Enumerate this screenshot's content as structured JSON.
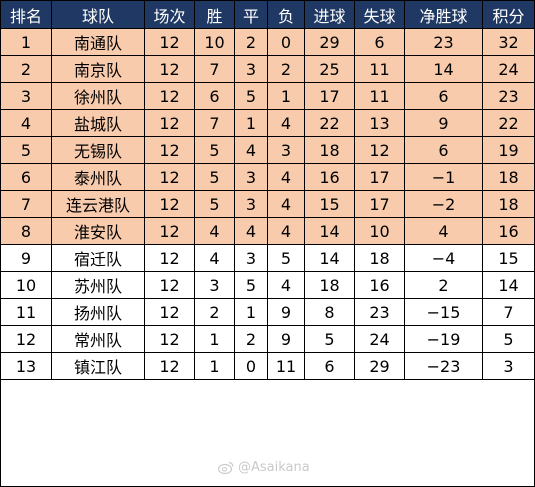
{
  "table": {
    "headers": [
      "排名",
      "球队",
      "场次",
      "胜",
      "平",
      "负",
      "进球",
      "失球",
      "净胜球",
      "积分"
    ],
    "rows": [
      [
        "1",
        "南通队",
        "12",
        "10",
        "2",
        "0",
        "29",
        "6",
        "23",
        "32"
      ],
      [
        "2",
        "南京队",
        "12",
        "7",
        "3",
        "2",
        "25",
        "11",
        "14",
        "24"
      ],
      [
        "3",
        "徐州队",
        "12",
        "6",
        "5",
        "1",
        "17",
        "11",
        "6",
        "23"
      ],
      [
        "4",
        "盐城队",
        "12",
        "7",
        "1",
        "4",
        "22",
        "13",
        "9",
        "22"
      ],
      [
        "5",
        "无锡队",
        "12",
        "5",
        "4",
        "3",
        "18",
        "12",
        "6",
        "19"
      ],
      [
        "6",
        "泰州队",
        "12",
        "5",
        "3",
        "4",
        "16",
        "17",
        "−1",
        "18"
      ],
      [
        "7",
        "连云港队",
        "12",
        "5",
        "3",
        "4",
        "15",
        "17",
        "−2",
        "18"
      ],
      [
        "8",
        "淮安队",
        "12",
        "4",
        "4",
        "4",
        "14",
        "10",
        "4",
        "16"
      ],
      [
        "9",
        "宿迁队",
        "12",
        "4",
        "3",
        "5",
        "14",
        "18",
        "−4",
        "15"
      ],
      [
        "10",
        "苏州队",
        "12",
        "3",
        "5",
        "4",
        "18",
        "16",
        "2",
        "14"
      ],
      [
        "11",
        "扬州队",
        "12",
        "2",
        "1",
        "9",
        "8",
        "23",
        "−15",
        "7"
      ],
      [
        "12",
        "常州队",
        "12",
        "1",
        "2",
        "9",
        "5",
        "24",
        "−19",
        "5"
      ],
      [
        "13",
        "镇江队",
        "12",
        "1",
        "0",
        "11",
        "6",
        "29",
        "−23",
        "3"
      ]
    ],
    "highlighted_rows": 8
  },
  "colors": {
    "header_bg": "#1f3864",
    "header_text": "#ffffff",
    "highlight_bg": "#f8cbad"
  },
  "watermark": {
    "icon": "weibo-icon",
    "text": "@Asaikana"
  }
}
